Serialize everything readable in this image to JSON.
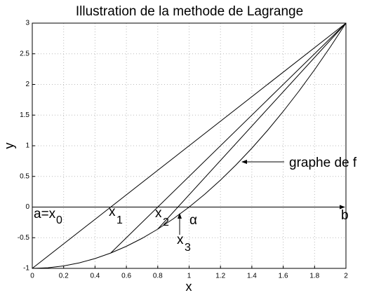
{
  "chart_data": {
    "type": "line",
    "title": "Illustration de la methode de Lagrange",
    "xlabel": "x",
    "ylabel": "y",
    "xlim": [
      0,
      2
    ],
    "ylim": [
      -1,
      3
    ],
    "xticks": [
      0,
      0.2,
      0.4,
      0.6,
      0.8,
      1,
      1.2,
      1.4,
      1.6,
      1.8,
      2
    ],
    "yticks": [
      -1,
      -0.5,
      0,
      0.5,
      1,
      1.5,
      2,
      2.5,
      3
    ],
    "grid": true,
    "hline": 0,
    "series": [
      {
        "color": "#000000",
        "x": [
          0,
          0.1,
          0.2,
          0.3,
          0.4,
          0.5,
          0.6,
          0.7,
          0.8,
          0.9,
          1,
          1.1,
          1.2,
          1.3,
          1.4,
          1.5,
          1.6,
          1.7,
          1.8,
          1.9,
          2
        ],
        "values": [
          -1,
          -0.99,
          -0.96,
          -0.91,
          -0.84,
          -0.75,
          -0.64,
          -0.51,
          -0.36,
          -0.19,
          0,
          0.21,
          0.44,
          0.69,
          0.96,
          1.25,
          1.56,
          1.89,
          2.24,
          2.61,
          3
        ]
      },
      {
        "color": "#000000",
        "x": [
          0,
          2
        ],
        "values": [
          -1,
          3
        ]
      },
      {
        "color": "#000000",
        "x": [
          0.5,
          2
        ],
        "values": [
          -0.75,
          3
        ]
      },
      {
        "color": "#000000",
        "x": [
          0.8,
          2
        ],
        "values": [
          -0.36,
          3
        ]
      }
    ],
    "annotations": [
      {
        "text": "a=x",
        "sub": "0"
      },
      {
        "text": "x",
        "sub": "1"
      },
      {
        "text": "x",
        "sub": "2"
      },
      {
        "text": "x",
        "sub": "3"
      },
      {
        "text": "α"
      },
      {
        "text": "b"
      },
      {
        "text": "graphe de f"
      }
    ]
  }
}
